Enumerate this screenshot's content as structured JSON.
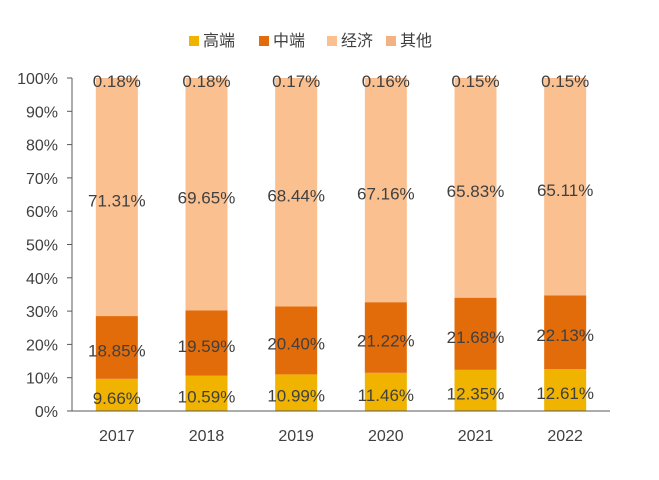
{
  "chart_data": {
    "type": "bar",
    "stacked": true,
    "categories": [
      "2017",
      "2018",
      "2019",
      "2020",
      "2021",
      "2022"
    ],
    "series": [
      {
        "name": "高端",
        "color": "#f0b400",
        "values": [
          9.66,
          10.59,
          10.99,
          11.46,
          12.35,
          12.61
        ],
        "labels": [
          "9.66%",
          "10.59%",
          "10.99%",
          "11.46%",
          "12.35%",
          "12.61%"
        ]
      },
      {
        "name": "中端",
        "color": "#e36c0a",
        "values": [
          18.85,
          19.59,
          20.4,
          21.22,
          21.68,
          22.13
        ],
        "labels": [
          "18.85%",
          "19.59%",
          "20.40%",
          "21.22%",
          "21.68%",
          "22.13%"
        ]
      },
      {
        "name": "经济",
        "color": "#fac090",
        "values": [
          71.31,
          69.65,
          68.44,
          67.16,
          65.83,
          65.11
        ],
        "labels": [
          "71.31%",
          "69.65%",
          "68.44%",
          "67.16%",
          "65.83%",
          "65.11%"
        ]
      },
      {
        "name": "其他",
        "color": "#f4b183",
        "values": [
          0.18,
          0.18,
          0.17,
          0.16,
          0.15,
          0.15
        ],
        "labels": [
          "0.18%",
          "0.18%",
          "0.17%",
          "0.16%",
          "0.15%",
          "0.15%"
        ]
      }
    ],
    "yticks": [
      "0%",
      "10%",
      "20%",
      "30%",
      "40%",
      "50%",
      "60%",
      "70%",
      "80%",
      "90%",
      "100%"
    ],
    "ylim": [
      0,
      100
    ],
    "legend_position": "top-center",
    "grid": false
  }
}
